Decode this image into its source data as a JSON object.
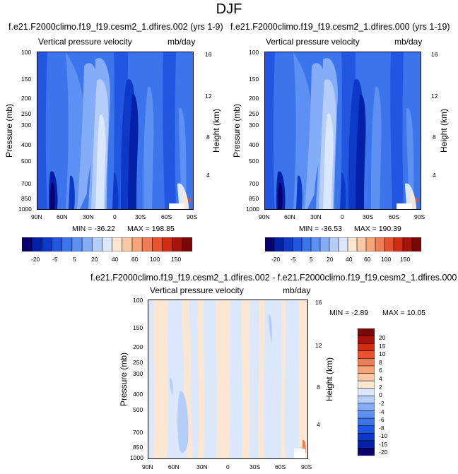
{
  "page_title": "DJF",
  "colors": {
    "levels": [
      "#08006e",
      "#0320a6",
      "#0d39c8",
      "#2157e0",
      "#3c74ec",
      "#5d90f3",
      "#85adf7",
      "#b5cdf9",
      "#dbe8fb",
      "#fbe6d2",
      "#f9c8a5",
      "#f6a478",
      "#f07d54",
      "#e8532f",
      "#d12d12",
      "#a9130a",
      "#7a0707"
    ]
  },
  "chart_data": [
    {
      "type": "heatmap",
      "title": "f.e21.F2000climo.f19_f19.cesm2_1.dfires.002 (yrs 1-9)",
      "subtitle_left": "Vertical pressure velocity",
      "subtitle_right": "mb/day",
      "ylabel": "Pressure (mb)",
      "ylabel_right": "Height (km)",
      "x_ticks": [
        "90N",
        "60N",
        "30N",
        "0",
        "30S",
        "60S",
        "90S"
      ],
      "y_ticks": [
        "100",
        "150",
        "200",
        "250",
        "300",
        "400",
        "500",
        "700",
        "850",
        "1000"
      ],
      "y_right_ticks": [
        "16",
        "12",
        "8",
        "4"
      ],
      "xlim": [
        90,
        -90
      ],
      "ylim": [
        1000,
        100
      ],
      "min_label": "MIN = -36.22",
      "max_label": "MAX = 198.85",
      "colorbar_labels": [
        "-20",
        "-5",
        "5",
        "20",
        "40",
        "60",
        "100",
        "150"
      ]
    },
    {
      "type": "heatmap",
      "title": "f.e21.F2000climo.f19_f19.cesm2_1.dfires.000 (yrs 1-19)",
      "subtitle_left": "Vertical pressure velocity",
      "subtitle_right": "mb/day",
      "ylabel": "Pressure (mb)",
      "ylabel_right": "Height (km)",
      "x_ticks": [
        "90N",
        "60N",
        "30N",
        "0",
        "30S",
        "60S",
        "90S"
      ],
      "y_ticks": [
        "100",
        "150",
        "200",
        "250",
        "300",
        "400",
        "500",
        "700",
        "850",
        "1000"
      ],
      "y_right_ticks": [
        "16",
        "12",
        "8",
        "4"
      ],
      "xlim": [
        90,
        -90
      ],
      "ylim": [
        1000,
        100
      ],
      "min_label": "MIN = -36.53",
      "max_label": "MAX = 190.39",
      "colorbar_labels": [
        "-20",
        "-5",
        "5",
        "20",
        "40",
        "60",
        "100",
        "150"
      ]
    },
    {
      "type": "heatmap",
      "title": "f.e21.F2000climo.f19_f19.cesm2_1.dfires.002 - f.e21.F2000climo.f19_f19.cesm2_1.dfires.000",
      "subtitle_left": "Vertical pressure velocity",
      "subtitle_right": "mb/day",
      "ylabel": "Pressure (mb)",
      "ylabel_right": "Height (km)",
      "x_ticks": [
        "90N",
        "60N",
        "30N",
        "0",
        "30S",
        "60S",
        "90S"
      ],
      "y_ticks": [
        "100",
        "150",
        "200",
        "250",
        "300",
        "400",
        "500",
        "700",
        "850",
        "1000"
      ],
      "y_right_ticks": [
        "16",
        "12",
        "8",
        "4"
      ],
      "xlim": [
        90,
        -90
      ],
      "ylim": [
        1000,
        100
      ],
      "min_label": "MIN =  -2.89",
      "max_label": "MAX =  10.05",
      "colorbar_labels": [
        "20",
        "15",
        "10",
        "8",
        "6",
        "4",
        "2",
        "0",
        "-2",
        "-4",
        "-6",
        "-8",
        "-10",
        "-15",
        "-20"
      ]
    }
  ]
}
